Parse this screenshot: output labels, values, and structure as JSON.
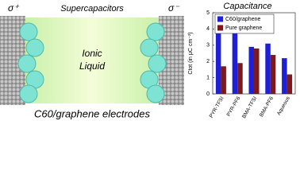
{
  "diagram": {
    "title": "Supercapacitors",
    "left_charge": "σ⁺",
    "right_charge": "σ⁻",
    "electrolyte": [
      "Ionic",
      "Liquid"
    ],
    "electrodes": "C60/graphene electrodes"
  },
  "chart_data": {
    "type": "bar",
    "title": "Capacitance",
    "y_label": "Ctot (in μC cm⁻²)",
    "categories": [
      "PYR-TFSI",
      "PYR-PF6",
      "BMA-TFSI",
      "BMA-PF6",
      "Aqueous"
    ],
    "series": [
      {
        "name": "C60/graphene",
        "color": "#1f1fd6",
        "values": [
          4.0,
          4.6,
          2.9,
          3.1,
          2.2
        ]
      },
      {
        "name": "Pure graphene",
        "color": "#7a1a1a",
        "values": [
          1.7,
          1.9,
          2.8,
          2.4,
          1.2
        ]
      }
    ],
    "ylim": [
      0,
      5
    ],
    "yticks": [
      0,
      1,
      2,
      3,
      4,
      5
    ],
    "grid": false,
    "legend": "top-left"
  }
}
